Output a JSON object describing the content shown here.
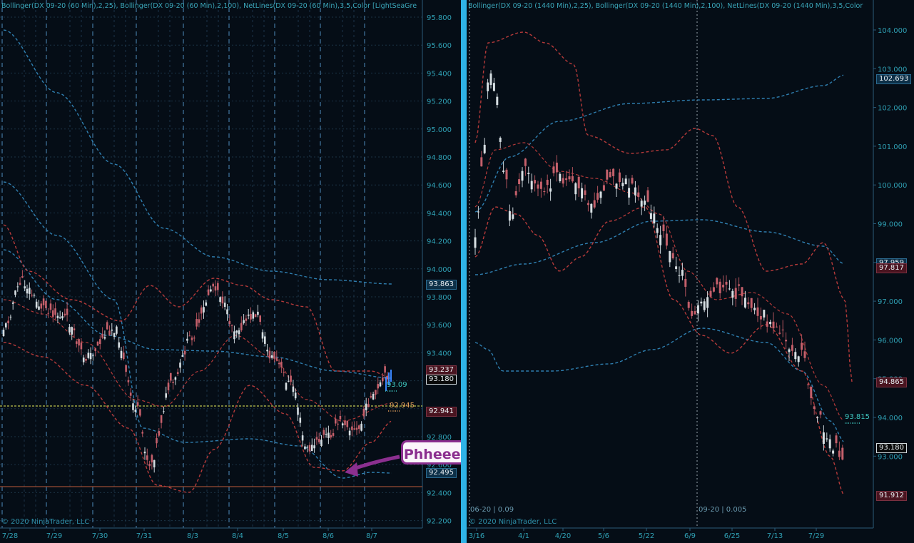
{
  "left": {
    "header": "Bollinger(DX 09-20 (60 Min),2,25), Bollinger(DX 09-20 (60 Min),2,100), NetLines(DX 09-20 (60 Min),3,5,Color [LightSeaGre",
    "copyright": "© 2020 NinjaTrader, LLC",
    "y_ticks": [
      "95.800",
      "95.600",
      "95.400",
      "95.200",
      "95.000",
      "94.800",
      "94.600",
      "94.400",
      "94.200",
      "94.000",
      "93.800",
      "93.600",
      "93.400",
      "93.200",
      "93.000",
      "92.800",
      "92.600",
      "92.400",
      "92.200"
    ],
    "x_ticks": [
      "7/28",
      "7/29",
      "7/30",
      "7/31",
      "8/3",
      "8/4",
      "8/5",
      "8/6",
      "8/7"
    ],
    "badges": {
      "upper_long": "93.863",
      "upper_short": "93.237",
      "last": "93.180",
      "netline": "92.941",
      "lower_long": "92.495"
    },
    "labels": {
      "net_up": "93.09",
      "net_down": "92.945"
    },
    "callout": "Phheeewww!!!",
    "colors": {
      "accent": "#2fb3e6",
      "callout": "#8b2f8f",
      "upper_band": "#b53a3a",
      "long_band": "#2f7fb0",
      "netline": "#e9f05a"
    }
  },
  "right": {
    "header": "Bollinger(DX 09-20 (1440 Min),2,25), Bollinger(DX 09-20 (1440 Min),2,100), NetLines(DX 09-20 (1440 Min),3,5,Color",
    "copyright": "© 2020 NinjaTrader, LLC",
    "y_ticks": [
      "104.000",
      "103.000",
      "102.000",
      "101.000",
      "100.000",
      "99.000",
      "98.000",
      "97.000",
      "96.000",
      "95.000",
      "94.000",
      "93.000"
    ],
    "x_ticks": [
      "3/16",
      "4/1",
      "4/20",
      "5/6",
      "5/22",
      "6/9",
      "6/25",
      "7/13",
      "7/29"
    ],
    "badges": {
      "upper_long": "102.693",
      "mid_a": "97.959",
      "mid_b": "97.817",
      "lower_short": "94.865",
      "last": "93.180",
      "lower": "91.912"
    },
    "labels": {
      "net": "93.815"
    },
    "contract_a": "06-20 | 0.09",
    "contract_b": "09-20 | 0.005"
  }
}
